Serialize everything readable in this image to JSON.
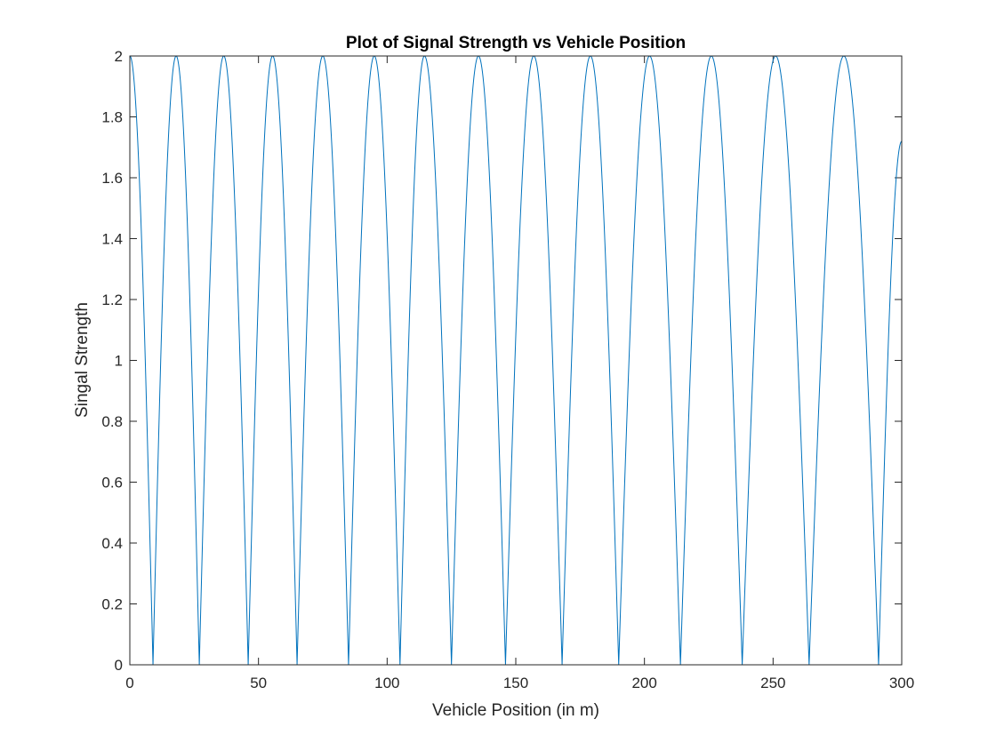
{
  "chart_data": {
    "type": "line",
    "title": "Plot of Signal Strength vs Vehicle Position",
    "xlabel": "Vehicle Position (in m)",
    "ylabel": "Singal Strength",
    "xlim": [
      0,
      300
    ],
    "ylim": [
      0,
      2
    ],
    "xticks": [
      0,
      50,
      100,
      150,
      200,
      250,
      300
    ],
    "xtick_labels": [
      "0",
      "50",
      "100",
      "150",
      "200",
      "250",
      "300"
    ],
    "yticks": [
      0,
      0.2,
      0.4,
      0.6,
      0.8,
      1,
      1.2,
      1.4,
      1.6,
      1.8,
      2
    ],
    "ytick_labels": [
      "0",
      "0.2",
      "0.4",
      "0.6",
      "0.8",
      "1",
      "1.2",
      "1.4",
      "1.6",
      "1.8",
      "2"
    ],
    "grid": false,
    "line_color": "#0072BD",
    "series": [
      {
        "x": [
          0,
          9,
          18,
          27,
          36.5,
          46,
          55.5,
          65,
          75,
          85,
          95,
          105,
          114.5,
          125,
          135.5,
          146,
          157,
          168,
          179,
          190,
          202,
          214,
          226,
          238,
          251,
          264,
          277.5,
          291,
          300
        ],
        "values": [
          2,
          0,
          2,
          0,
          2,
          0,
          2,
          0,
          2,
          0,
          2,
          0,
          2,
          0,
          2,
          0,
          2,
          0,
          2,
          0,
          2,
          0,
          2,
          0,
          2,
          0,
          2,
          0,
          1.72
        ]
      }
    ]
  }
}
